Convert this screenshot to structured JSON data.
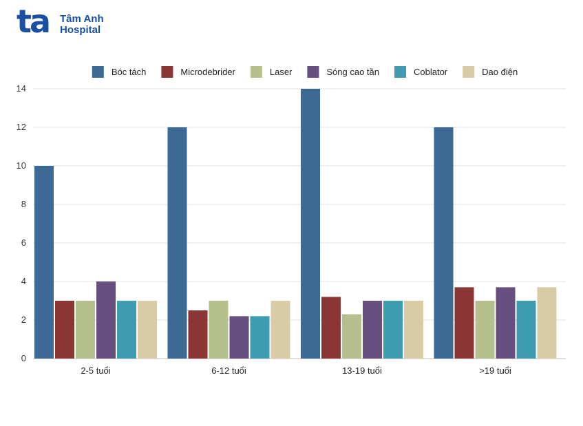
{
  "logo": {
    "mark": "ta",
    "line1": "Tâm Anh",
    "line2": "Hospital",
    "color": "#1b4fa3"
  },
  "chart_data": {
    "type": "bar",
    "title": "",
    "xlabel": "",
    "ylabel": "",
    "ylim": [
      0,
      14
    ],
    "yticks": [
      0,
      2,
      4,
      6,
      8,
      10,
      12,
      14
    ],
    "grid": true,
    "legend_position": "top",
    "categories": [
      "2-5 tuổi",
      "6-12 tuổi",
      "13-19 tuổi",
      ">19 tuổi"
    ],
    "series": [
      {
        "name": "Bóc tách",
        "color": "#3c6a94",
        "values": [
          10,
          12,
          14,
          12
        ]
      },
      {
        "name": "Microdebrider",
        "color": "#8b3535",
        "values": [
          3,
          2.5,
          3.2,
          3.7
        ]
      },
      {
        "name": "Laser",
        "color": "#b5c08c",
        "values": [
          3,
          3,
          2.3,
          3
        ]
      },
      {
        "name": "Sóng cao tần",
        "color": "#674f80",
        "values": [
          4,
          2.2,
          3,
          3.7
        ]
      },
      {
        "name": "Coblator",
        "color": "#3f9bb0",
        "values": [
          3,
          2.2,
          3,
          3
        ]
      },
      {
        "name": "Dao điện",
        "color": "#d8cba6",
        "values": [
          3,
          3,
          3,
          3.7
        ]
      }
    ]
  }
}
